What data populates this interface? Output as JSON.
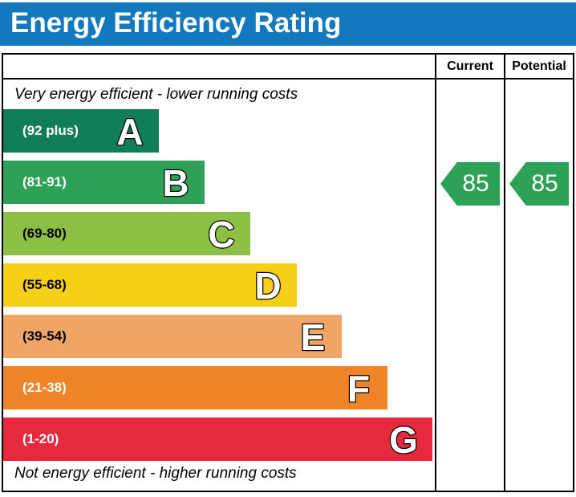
{
  "title": "Energy Efficiency Rating",
  "colors": {
    "title_bar": "#1478be",
    "border": "#000000",
    "arrow": "#2fa156"
  },
  "header": {
    "current_label": "Current",
    "potential_label": "Potential"
  },
  "top_note": "Very energy efficient - lower running costs",
  "bottom_note": "Not energy efficient - higher running costs",
  "chart_data": {
    "type": "bar",
    "title": "Energy Efficiency Rating",
    "orientation": "horizontal",
    "bands": [
      {
        "letter": "A",
        "range_label": "(92 plus)",
        "color": "#117c58",
        "label_color": "#ffffff",
        "width_pct": 36.0
      },
      {
        "letter": "B",
        "range_label": "(81-91)",
        "color": "#2fa156",
        "label_color": "#ffffff",
        "width_pct": 46.6
      },
      {
        "letter": "C",
        "range_label": "(69-80)",
        "color": "#8dbf44",
        "label_color": "#000000",
        "width_pct": 57.3
      },
      {
        "letter": "D",
        "range_label": "(55-68)",
        "color": "#f6cf17",
        "label_color": "#000000",
        "width_pct": 68.0
      },
      {
        "letter": "E",
        "range_label": "(39-54)",
        "color": "#f0a465",
        "label_color": "#000000",
        "width_pct": 78.5
      },
      {
        "letter": "F",
        "range_label": "(21-38)",
        "color": "#ee8327",
        "label_color": "#ffffff",
        "width_pct": 89.0
      },
      {
        "letter": "G",
        "range_label": "(1-20)",
        "color": "#e6293d",
        "label_color": "#ffffff",
        "width_pct": 99.5
      }
    ],
    "current": {
      "value": 85,
      "band": "B",
      "band_index": 1,
      "arrow_color": "#2fa156"
    },
    "potential": {
      "value": 85,
      "band": "B",
      "band_index": 1,
      "arrow_color": "#2fa156"
    }
  }
}
